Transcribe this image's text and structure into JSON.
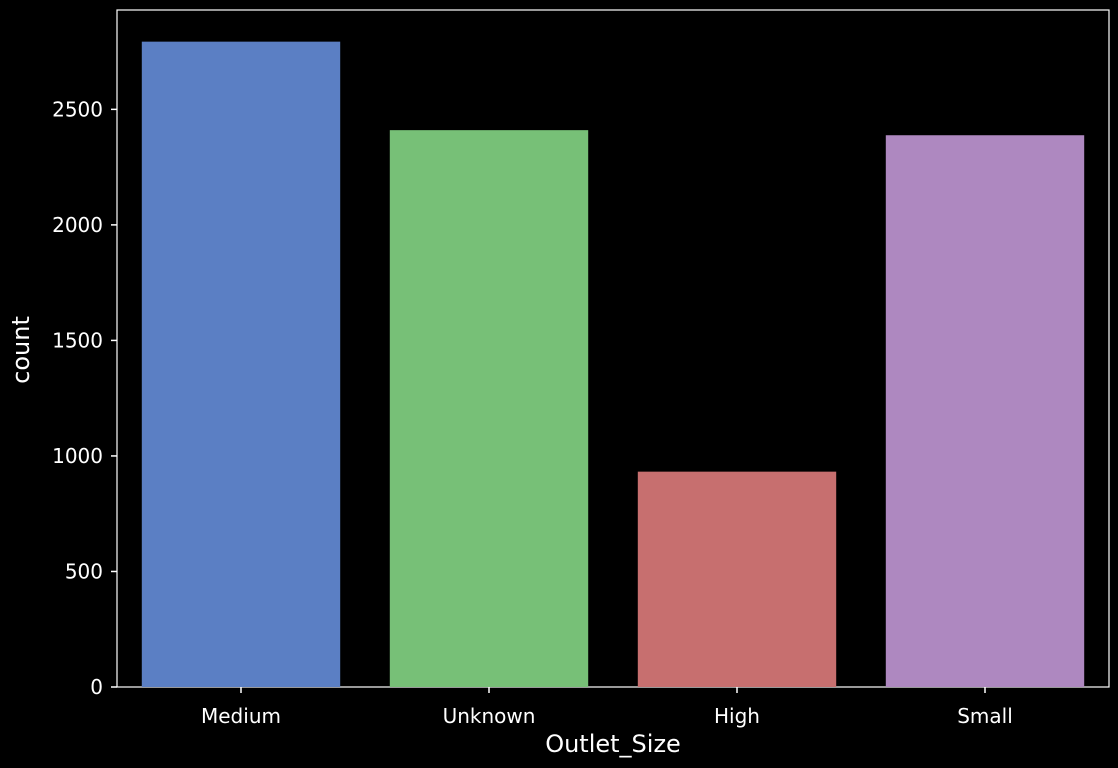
{
  "chart_data": {
    "type": "bar",
    "categories": [
      "Medium",
      "Unknown",
      "High",
      "Small"
    ],
    "values": [
      2793,
      2410,
      932,
      2388
    ],
    "colors": [
      "#5b7fc4",
      "#77c077",
      "#c76f6f",
      "#ae88c0"
    ],
    "xlabel": "Outlet_Size",
    "ylabel": "count",
    "ylim": [
      0,
      2930
    ],
    "yticks": [
      0,
      500,
      1000,
      1500,
      2000,
      2500
    ],
    "grid": false,
    "background": "#000000",
    "axis_color": "#ffffff"
  }
}
